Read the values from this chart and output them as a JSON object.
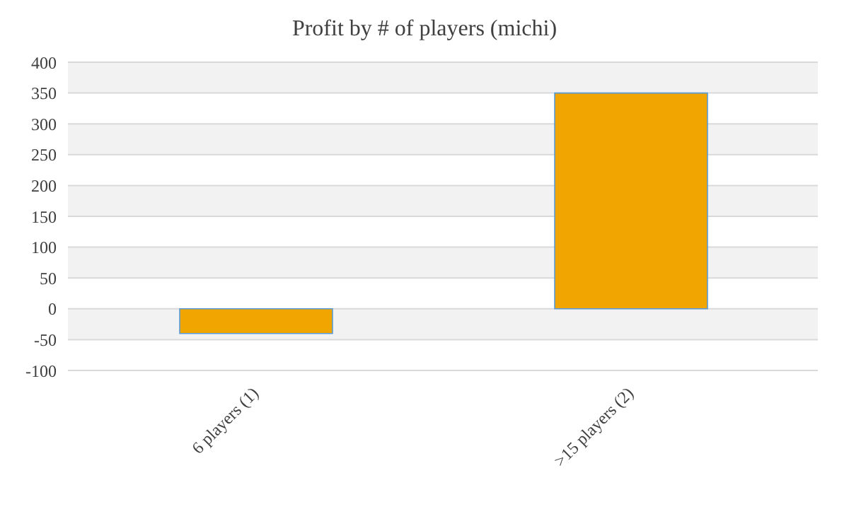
{
  "chart_data": {
    "type": "bar",
    "title": "Profit by # of players  (michi)",
    "categories": [
      "6 players (1)",
      ">15 players (2)"
    ],
    "values": [
      -40,
      350
    ],
    "color": "#f0a500",
    "ylim": [
      -100,
      400
    ],
    "yticks": [
      -100,
      -50,
      0,
      50,
      100,
      150,
      200,
      250,
      300,
      350,
      400
    ],
    "grid": "y"
  }
}
